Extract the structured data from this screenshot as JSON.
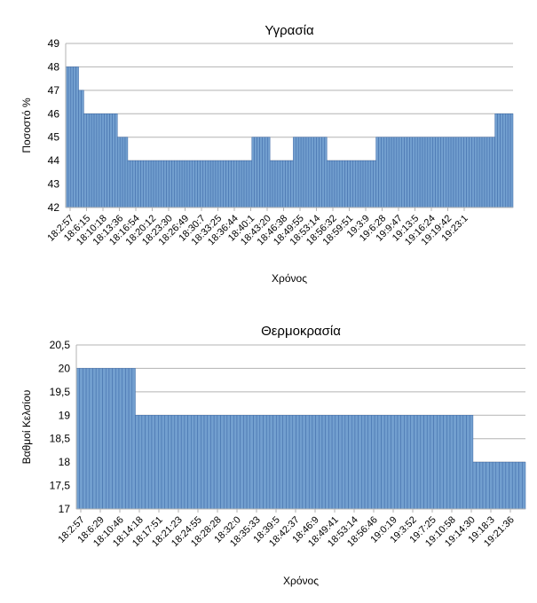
{
  "colors": {
    "bar_fill": "#729fcf",
    "bar_stroke": "#3e6aa8",
    "grid": "#b3b3b3",
    "axis": "#b3b3b3"
  },
  "chart_data": [
    {
      "type": "bar",
      "title": "Υγρασία",
      "xlabel": "Χρόνος",
      "ylabel": "Ποσοστό %",
      "ylim": [
        42,
        49
      ],
      "yticks": [
        "42",
        "43",
        "44",
        "45",
        "46",
        "47",
        "48",
        "49"
      ],
      "grid": true,
      "legend": "none",
      "tick_labels": [
        "18:2:57",
        "18:6:15",
        "18:10:18",
        "18:13:36",
        "18:16:54",
        "18:20:12",
        "18:23:30",
        "18:26:49",
        "18:30:7",
        "18:33:25",
        "18:36:44",
        "18:40:1",
        "18:43:20",
        "18:46:38",
        "18:49:55",
        "18:53:14",
        "18:56:32",
        "18:59:51",
        "19:3:9",
        "19:6:28",
        "19:9:47",
        "19:13:5",
        "19:16:24",
        "19:19:42",
        "19:23:1"
      ],
      "segments": [
        {
          "value": 48,
          "count": 5
        },
        {
          "value": 47,
          "count": 2
        },
        {
          "value": 46,
          "count": 13
        },
        {
          "value": 45,
          "count": 4
        },
        {
          "value": 44,
          "count": 48
        },
        {
          "value": 45,
          "count": 7
        },
        {
          "value": 44,
          "count": 9
        },
        {
          "value": 45,
          "count": 13
        },
        {
          "value": 44,
          "count": 19
        },
        {
          "value": 45,
          "count": 46
        },
        {
          "value": 46,
          "count": 7
        }
      ]
    },
    {
      "type": "bar",
      "title": "Θερμοκρασία",
      "xlabel": "Χρόνος",
      "ylabel": "Βαθμοί Κελσίου",
      "ylim": [
        17,
        20.5
      ],
      "yticks": [
        "17",
        "17,5",
        "18",
        "18,5",
        "19",
        "19,5",
        "20",
        "20,5"
      ],
      "grid": true,
      "legend": "none",
      "tick_labels": [
        "18:2:57",
        "18:6:29",
        "18:10:46",
        "18:14:18",
        "18:17:51",
        "18:21:23",
        "18:24:55",
        "18:28:28",
        "18:32:0",
        "18:35:33",
        "18:39:5",
        "18:42:37",
        "18:46:9",
        "18:49:41",
        "18:53:14",
        "18:56:46",
        "19:0:19",
        "19:3:52",
        "19:7:25",
        "19:10:58",
        "19:14:30",
        "19:18:3",
        "19:21:36"
      ],
      "segments": [
        {
          "value": 20,
          "count": 18
        },
        {
          "value": 19,
          "count": 103
        },
        {
          "value": 18,
          "count": 16
        }
      ]
    }
  ]
}
